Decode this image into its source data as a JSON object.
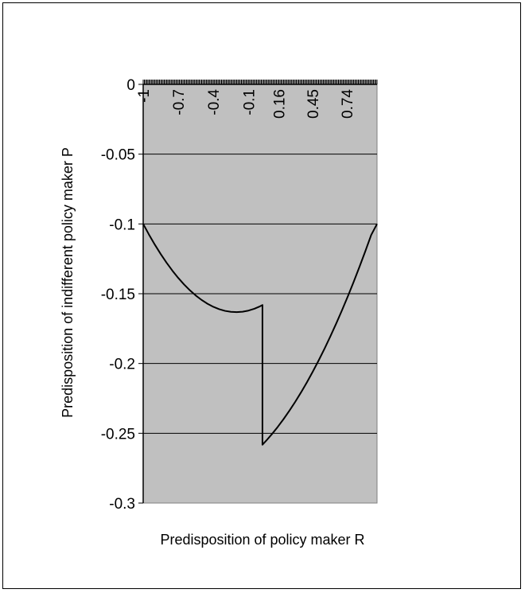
{
  "chart_data": {
    "type": "line",
    "title": "",
    "xlabel": "Predisposition of policy maker R",
    "ylabel": "Predisposition of indifferent policy maker P",
    "xlim": [
      -1,
      1
    ],
    "ylim": [
      -0.3,
      0
    ],
    "y_ticks": [
      0,
      -0.05,
      -0.1,
      -0.15,
      -0.2,
      -0.25,
      -0.3
    ],
    "y_tick_labels": [
      "0",
      "-0.05",
      "-0.1",
      "-0.15",
      "-0.2",
      "-0.25",
      "-0.3"
    ],
    "x_tick_labels": [
      {
        "value": -1,
        "label": "-1"
      },
      {
        "value": -0.7,
        "label": "-0.7"
      },
      {
        "value": -0.4,
        "label": "-0.4"
      },
      {
        "value": -0.1,
        "label": "-0.1"
      },
      {
        "value": 0.16,
        "label": "0.16"
      },
      {
        "value": 0.45,
        "label": "0.45"
      },
      {
        "value": 0.74,
        "label": "0.74"
      }
    ],
    "x_axis_position": "top",
    "x_tick_step": 0.01,
    "grid": "horizontal",
    "plot_background": "#c0c0c0",
    "legend": "none",
    "series": [
      {
        "color": "#000000",
        "x": [
          -1,
          -0.95,
          -0.9,
          -0.85,
          -0.8,
          -0.75,
          -0.7,
          -0.65,
          -0.6,
          -0.55,
          -0.5,
          -0.45,
          -0.4,
          -0.35,
          -0.3,
          -0.25,
          -0.2,
          -0.15,
          -0.1,
          -0.05,
          0,
          0.02,
          0.02,
          0.05,
          0.1,
          0.15,
          0.2,
          0.25,
          0.3,
          0.35,
          0.4,
          0.45,
          0.5,
          0.55,
          0.6,
          0.65,
          0.7,
          0.75,
          0.8,
          0.85,
          0.9,
          0.95,
          1
        ],
        "y": [
          -0.1,
          -0.1077,
          -0.1149,
          -0.1216,
          -0.1278,
          -0.1335,
          -0.1387,
          -0.1434,
          -0.1476,
          -0.1513,
          -0.1545,
          -0.1572,
          -0.1594,
          -0.1611,
          -0.1623,
          -0.163,
          -0.1632,
          -0.1629,
          -0.1621,
          -0.1608,
          -0.159,
          -0.1581,
          -0.2582,
          -0.2555,
          -0.2507,
          -0.2455,
          -0.2399,
          -0.2339,
          -0.2275,
          -0.2207,
          -0.2135,
          -0.2059,
          -0.1979,
          -0.1895,
          -0.1807,
          -0.1715,
          -0.1619,
          -0.1519,
          -0.1415,
          -0.1307,
          -0.1195,
          -0.1079,
          -0.1
        ]
      }
    ]
  }
}
